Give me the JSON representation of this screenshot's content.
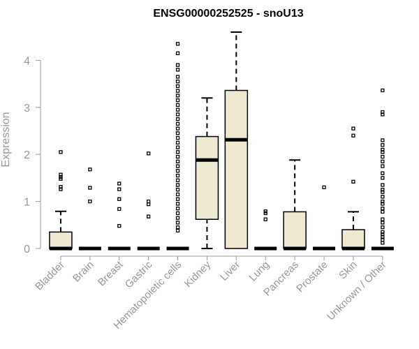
{
  "chart_data": {
    "type": "box",
    "title": "ENSG00000252525 - snoU13",
    "xlabel": "",
    "ylabel": "Expression",
    "ylim": [
      0,
      4.6
    ],
    "yticks": [
      0,
      1,
      2,
      3,
      4
    ],
    "box_fill": "#efe8d2",
    "categories": [
      "Bladder",
      "Brain",
      "Breast",
      "Gastric",
      "Hematopoietic cells",
      "Kidney",
      "Liver",
      "Lung",
      "Pancreas",
      "Prostate",
      "Skin",
      "Unknown / Other"
    ],
    "boxes": [
      {
        "min": 0,
        "q1": 0,
        "median": 0,
        "q3": 0.35,
        "max": 0.79,
        "outliers": [
          2.05,
          1.57,
          1.52,
          1.48,
          1.31,
          1.26
        ]
      },
      {
        "min": 0,
        "q1": 0,
        "median": 0,
        "q3": 0,
        "max": 0,
        "outliers": [
          1.68,
          1.29,
          1.0
        ]
      },
      {
        "min": 0,
        "q1": 0,
        "median": 0,
        "q3": 0,
        "max": 0,
        "outliers": [
          1.38,
          1.26,
          1.05,
          0.84,
          0.48
        ]
      },
      {
        "min": 0,
        "q1": 0,
        "median": 0,
        "q3": 0,
        "max": 0,
        "outliers": [
          2.02,
          1.0,
          0.94,
          0.68
        ]
      },
      {
        "min": 0,
        "q1": 0,
        "median": 0,
        "q3": 0,
        "max": 0,
        "outliers": [
          4.35,
          4.15,
          3.9,
          3.8,
          3.65,
          3.55,
          3.45,
          3.35,
          3.25,
          3.15,
          3.05,
          2.95,
          2.85,
          2.75,
          2.65,
          2.55,
          2.45,
          2.35,
          2.25,
          2.15,
          2.05,
          1.95,
          1.85,
          1.75,
          1.65,
          1.55,
          1.45,
          1.35,
          1.25,
          1.15,
          1.05,
          0.95,
          0.85,
          0.75,
          0.65,
          0.55,
          0.45,
          0.38
        ]
      },
      {
        "min": 0,
        "q1": 0.62,
        "median": 1.88,
        "q3": 2.38,
        "max": 3.2,
        "outliers": []
      },
      {
        "min": 0,
        "q1": 0,
        "median": 2.31,
        "q3": 3.36,
        "max": 4.6,
        "outliers": []
      },
      {
        "min": 0,
        "q1": 0,
        "median": 0,
        "q3": 0,
        "max": 0,
        "outliers": [
          0.79,
          0.75,
          0.62
        ]
      },
      {
        "min": 0,
        "q1": 0,
        "median": 0,
        "q3": 0.78,
        "max": 1.88,
        "outliers": []
      },
      {
        "min": 0,
        "q1": 0,
        "median": 0,
        "q3": 0,
        "max": 0,
        "outliers": [
          1.3
        ]
      },
      {
        "min": 0,
        "q1": 0,
        "median": 0,
        "q3": 0.4,
        "max": 0.78,
        "outliers": [
          2.55,
          2.4,
          1.42
        ]
      },
      {
        "min": 0,
        "q1": 0,
        "median": 0,
        "q3": 0,
        "max": 0,
        "outliers": [
          3.36,
          2.9,
          2.85,
          2.3,
          2.2,
          2.1,
          2.05,
          1.95,
          1.85,
          1.75,
          1.6,
          1.5,
          1.35,
          1.25,
          1.2,
          1.1,
          1.0,
          0.95,
          0.85,
          0.78,
          0.62,
          0.55,
          0.45,
          0.35,
          0.3,
          0.25,
          0.18,
          0.12
        ]
      }
    ]
  }
}
